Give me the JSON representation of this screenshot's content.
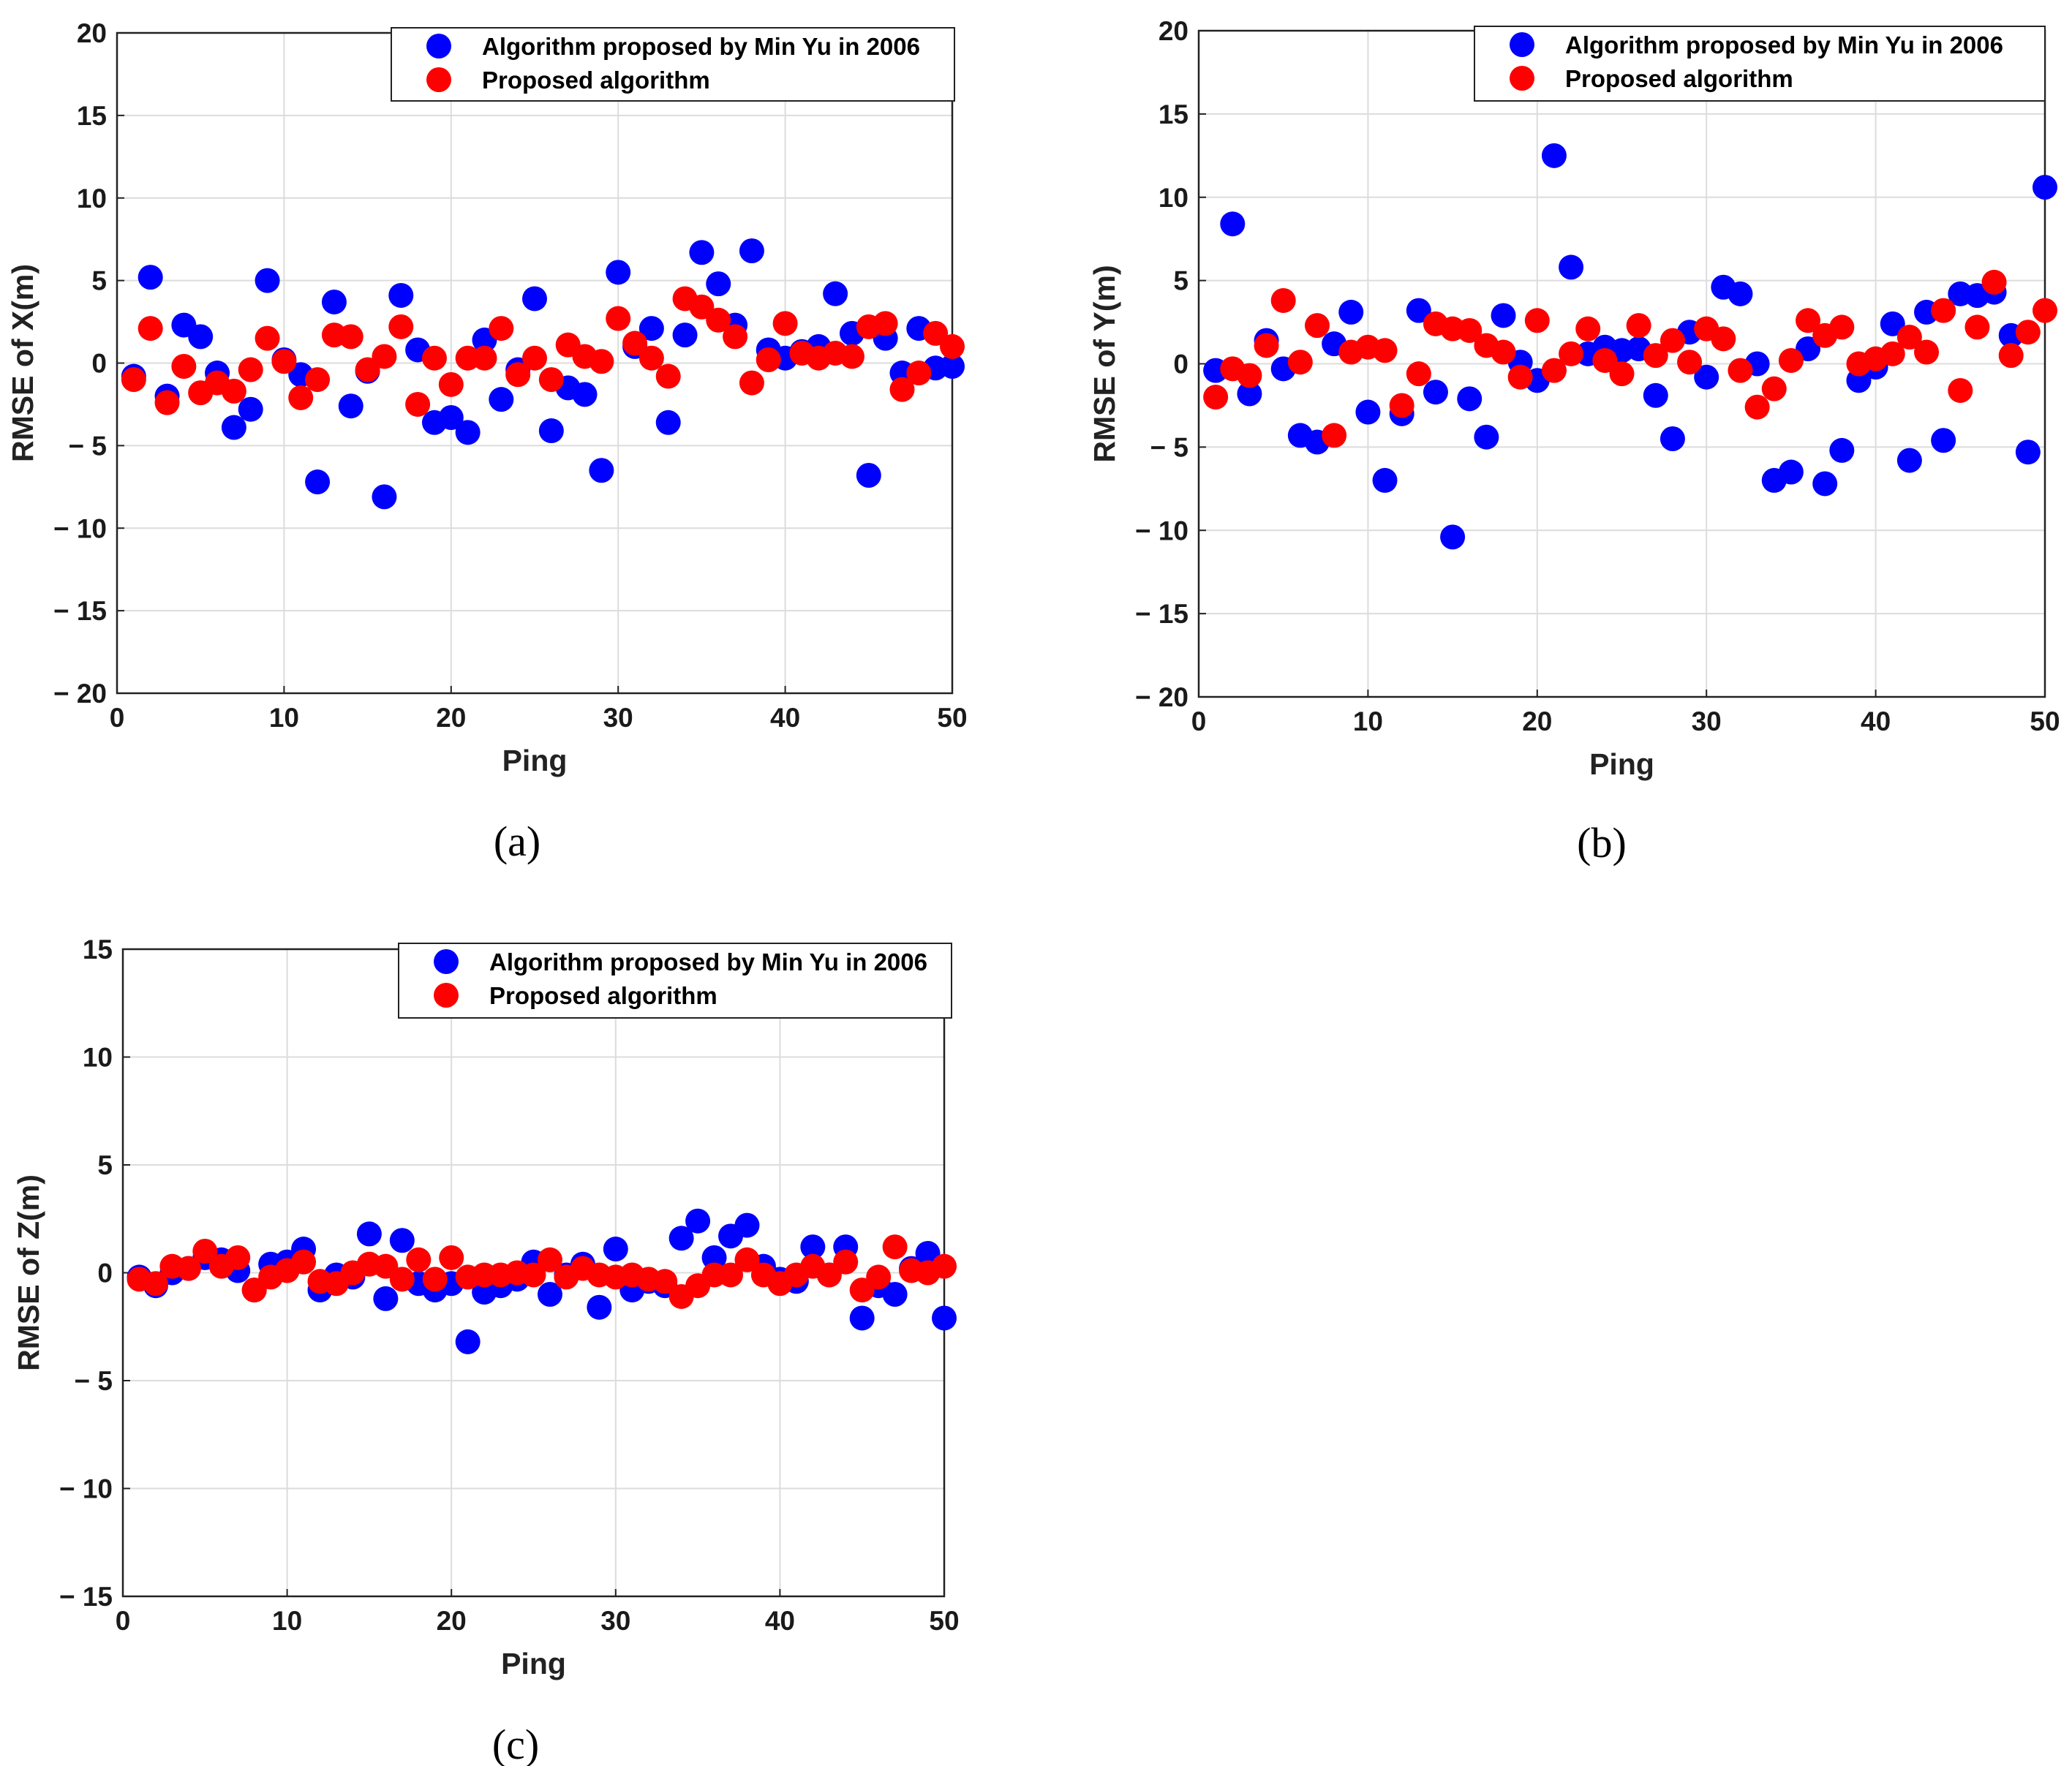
{
  "colors": {
    "series_1": "#0000ff",
    "series_2": "#ff0000"
  },
  "chart_data": [
    {
      "type": "scatter",
      "caption": "(a)",
      "xlabel": "Ping",
      "ylabel": "RMSE of X(m)",
      "xlim": [
        0,
        50
      ],
      "ylim": [
        -20,
        20
      ],
      "xticks": [
        0,
        10,
        20,
        30,
        40,
        50
      ],
      "yticks": [
        20,
        15,
        10,
        5,
        0,
        -5,
        -10,
        -15,
        -20
      ],
      "xtick_labels": [
        "0",
        "10",
        "20",
        "30",
        "40",
        "50"
      ],
      "ytick_labels": [
        "20",
        "15",
        "10",
        "5",
        "0",
        "− 5",
        "− 10",
        "− 15",
        "− 20"
      ],
      "grid": true,
      "legend_position": "top-right",
      "x": [
        1,
        2,
        3,
        4,
        5,
        6,
        7,
        8,
        9,
        10,
        11,
        12,
        13,
        14,
        15,
        16,
        17,
        18,
        19,
        20,
        21,
        22,
        23,
        24,
        25,
        26,
        27,
        28,
        29,
        30,
        31,
        32,
        33,
        34,
        35,
        36,
        37,
        38,
        39,
        40,
        41,
        42,
        43,
        44,
        45,
        46,
        47,
        48,
        49,
        50
      ],
      "series": [
        {
          "name": "Algorithm proposed by Min Yu in 2006",
          "color": "#0000ff",
          "values": [
            -0.8,
            5.2,
            -2.0,
            2.3,
            1.6,
            -0.6,
            -3.9,
            -2.8,
            5.0,
            0.2,
            -0.7,
            -7.2,
            3.7,
            -2.6,
            -0.5,
            -8.1,
            4.1,
            0.8,
            -3.6,
            -3.3,
            -4.2,
            1.4,
            -2.2,
            -0.4,
            3.9,
            -4.1,
            -1.5,
            -1.9,
            -6.5,
            5.5,
            1.0,
            2.1,
            -3.6,
            1.7,
            6.7,
            4.8,
            2.3,
            6.8,
            0.8,
            0.3,
            0.7,
            1.0,
            4.2,
            1.8,
            -6.8,
            1.5,
            -0.6,
            2.1,
            -0.3,
            -0.2
          ]
        },
        {
          "name": "Proposed algorithm",
          "color": "#ff0000",
          "values": [
            -1.0,
            2.1,
            -2.4,
            -0.2,
            -1.8,
            -1.2,
            -1.7,
            -0.4,
            1.5,
            0.1,
            -2.1,
            -1.0,
            1.7,
            1.6,
            -0.4,
            0.4,
            2.2,
            -2.5,
            0.3,
            -1.3,
            0.3,
            0.3,
            2.1,
            -0.7,
            0.3,
            -1.0,
            1.1,
            0.4,
            0.1,
            2.7,
            1.2,
            0.3,
            -0.8,
            3.9,
            3.4,
            2.6,
            1.6,
            -1.2,
            0.2,
            2.4,
            0.6,
            0.3,
            0.6,
            0.4,
            2.2,
            2.4,
            -1.6,
            -0.6,
            1.8,
            1.0
          ]
        }
      ]
    },
    {
      "type": "scatter",
      "caption": "(b)",
      "xlabel": "Ping",
      "ylabel": "RMSE of Y(m)",
      "xlim": [
        0,
        50
      ],
      "ylim": [
        -20,
        20
      ],
      "xticks": [
        0,
        10,
        20,
        30,
        40,
        50
      ],
      "yticks": [
        20,
        15,
        10,
        5,
        0,
        -5,
        -10,
        -15,
        -20
      ],
      "xtick_labels": [
        "0",
        "10",
        "20",
        "30",
        "40",
        "50"
      ],
      "ytick_labels": [
        "20",
        "15",
        "10",
        "5",
        "0",
        "− 5",
        "− 10",
        "− 15",
        "− 20"
      ],
      "grid": true,
      "legend_position": "top-right",
      "x": [
        1,
        2,
        3,
        4,
        5,
        6,
        7,
        8,
        9,
        10,
        11,
        12,
        13,
        14,
        15,
        16,
        17,
        18,
        19,
        20,
        21,
        22,
        23,
        24,
        25,
        26,
        27,
        28,
        29,
        30,
        31,
        32,
        33,
        34,
        35,
        36,
        37,
        38,
        39,
        40,
        41,
        42,
        43,
        44,
        45,
        46,
        47,
        48,
        49,
        50
      ],
      "series": [
        {
          "name": "Algorithm proposed by Min Yu in 2006",
          "color": "#0000ff",
          "values": [
            -0.4,
            8.4,
            -1.8,
            1.4,
            -0.3,
            -4.3,
            -4.7,
            1.2,
            3.1,
            -2.9,
            -7.0,
            -3.0,
            3.2,
            -1.7,
            -10.4,
            -2.1,
            -4.4,
            2.9,
            0.1,
            -1.0,
            12.5,
            5.8,
            0.6,
            1.0,
            0.8,
            0.9,
            -1.9,
            -4.5,
            1.9,
            -0.8,
            4.6,
            4.2,
            0.0,
            -7.0,
            -6.5,
            0.9,
            -7.2,
            -5.2,
            -1.0,
            -0.2,
            2.4,
            -5.8,
            3.1,
            -4.6,
            4.2,
            4.1,
            4.3,
            1.7,
            -5.3,
            10.6
          ]
        },
        {
          "name": "Proposed algorithm",
          "color": "#ff0000",
          "values": [
            -2.0,
            -0.3,
            -0.7,
            1.1,
            3.8,
            0.1,
            2.3,
            -4.3,
            0.7,
            1.0,
            0.8,
            -2.5,
            -0.6,
            2.4,
            2.1,
            2.0,
            1.1,
            0.7,
            -0.8,
            2.6,
            -0.4,
            0.6,
            2.1,
            0.2,
            -0.6,
            2.3,
            0.5,
            1.4,
            0.1,
            2.1,
            1.5,
            -0.4,
            -2.6,
            -1.5,
            0.2,
            2.6,
            1.7,
            2.2,
            0.0,
            0.3,
            0.6,
            1.6,
            0.7,
            3.2,
            -1.6,
            2.2,
            4.9,
            0.5,
            1.9,
            3.2
          ]
        }
      ]
    },
    {
      "type": "scatter",
      "caption": "(c)",
      "xlabel": "Ping",
      "ylabel": "RMSE of Z(m)",
      "xlim": [
        0,
        50
      ],
      "ylim": [
        -15,
        15
      ],
      "xticks": [
        0,
        10,
        20,
        30,
        40,
        50
      ],
      "yticks": [
        15,
        10,
        5,
        0,
        -5,
        -10,
        -15
      ],
      "xtick_labels": [
        "0",
        "10",
        "20",
        "30",
        "40",
        "50"
      ],
      "ytick_labels": [
        "15",
        "10",
        "5",
        "0",
        "− 5",
        "− 10",
        "− 15"
      ],
      "grid": true,
      "legend_position": "top-right",
      "x": [
        1,
        2,
        3,
        4,
        5,
        6,
        7,
        8,
        9,
        10,
        11,
        12,
        13,
        14,
        15,
        16,
        17,
        18,
        19,
        20,
        21,
        22,
        23,
        24,
        25,
        26,
        27,
        28,
        29,
        30,
        31,
        32,
        33,
        34,
        35,
        36,
        37,
        38,
        39,
        40,
        41,
        42,
        43,
        44,
        45,
        46,
        47,
        48,
        49,
        50
      ],
      "series": [
        {
          "name": "Algorithm proposed by Min Yu in 2006",
          "color": "#0000ff",
          "values": [
            -0.2,
            -0.6,
            0.0,
            0.2,
            0.7,
            0.6,
            0.1,
            -0.8,
            0.4,
            0.5,
            1.1,
            -0.8,
            -0.1,
            -0.2,
            1.8,
            -1.2,
            1.5,
            -0.5,
            -0.8,
            -0.5,
            -3.2,
            -0.9,
            -0.6,
            -0.3,
            0.5,
            -1.0,
            -0.1,
            0.4,
            -1.6,
            1.1,
            -0.8,
            -0.4,
            -0.6,
            1.6,
            2.4,
            0.7,
            1.7,
            2.2,
            0.3,
            -0.3,
            -0.4,
            1.2,
            -0.1,
            1.2,
            -2.1,
            -0.6,
            -1.0,
            0.2,
            0.9,
            -2.1
          ]
        },
        {
          "name": "Proposed algorithm",
          "color": "#ff0000",
          "values": [
            -0.3,
            -0.5,
            0.3,
            0.2,
            1.0,
            0.3,
            0.7,
            -0.8,
            -0.2,
            0.1,
            0.5,
            -0.4,
            -0.5,
            0.0,
            0.4,
            0.3,
            -0.3,
            0.6,
            -0.3,
            0.7,
            -0.2,
            -0.1,
            -0.1,
            0.0,
            -0.1,
            0.6,
            -0.2,
            0.2,
            -0.1,
            -0.2,
            -0.1,
            -0.3,
            -0.4,
            -1.1,
            -0.6,
            -0.1,
            -0.1,
            0.6,
            -0.1,
            -0.5,
            -0.1,
            0.3,
            -0.1,
            0.5,
            -0.8,
            -0.2,
            1.2,
            0.1,
            0.0,
            0.3
          ]
        }
      ]
    }
  ]
}
